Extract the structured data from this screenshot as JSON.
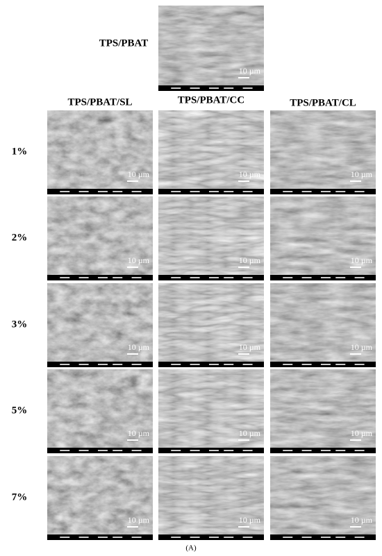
{
  "figure": {
    "reference": {
      "label": "TPS/PBAT",
      "scale": "10 µm"
    },
    "columns": [
      "TPS/PBAT/SL",
      "TPS/PBAT/CC",
      "TPS/PBAT/CL"
    ],
    "rows": [
      {
        "label": "1%",
        "cells": [
          {
            "scale": "10 µm"
          },
          {
            "scale": "10 µm"
          },
          {
            "scale": "10 µm"
          }
        ]
      },
      {
        "label": "2%",
        "cells": [
          {
            "scale": "10 µm"
          },
          {
            "scale": "10 µm"
          },
          {
            "scale": "10 µm"
          }
        ]
      },
      {
        "label": "3%",
        "cells": [
          {
            "scale": "10 µm"
          },
          {
            "scale": "10 µm"
          },
          {
            "scale": "10 µm"
          }
        ]
      },
      {
        "label": "5%",
        "cells": [
          {
            "scale": "10 µm"
          },
          {
            "scale": "10 µm"
          },
          {
            "scale": "10 µm"
          }
        ]
      },
      {
        "label": "7%",
        "cells": [
          {
            "scale": "10 µm"
          },
          {
            "scale": "10 µm"
          },
          {
            "scale": "10 µm"
          }
        ]
      }
    ],
    "caption": "(A)"
  }
}
